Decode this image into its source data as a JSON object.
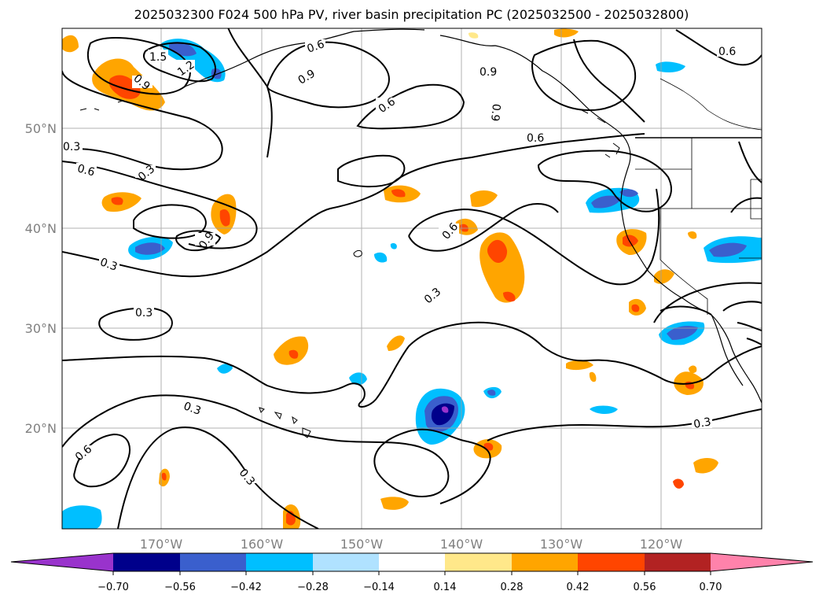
{
  "title": "2025032300 F024 500 hPa PV, river basin precipitation PC (2025032500 - 2025032800)",
  "map": {
    "lat_labels": [
      "50°N",
      "40°N",
      "30°N",
      "20°N"
    ],
    "lon_labels": [
      "170°W",
      "160°W",
      "150°W",
      "140°W",
      "130°W",
      "120°W"
    ],
    "contour_labels": [
      "1.5",
      "1.2",
      "0.9",
      "0.6",
      "0.3",
      "0.9",
      "0.6",
      "0.9",
      "0.6",
      "0.3",
      "0.9",
      "0.6",
      "0.3",
      "0.3",
      "0.3",
      "0.6",
      "0.3",
      "0.3",
      "0.3",
      "0.6",
      "0.9",
      "0.6"
    ],
    "contour_line_color": "#000000",
    "coast_color": "#000000",
    "grid_color": "#a0a0a0"
  },
  "colorbar": {
    "ticks": [
      "−0.70",
      "−0.56",
      "−0.42",
      "−0.28",
      "−0.14",
      "0.14",
      "0.28",
      "0.42",
      "0.56",
      "0.70"
    ],
    "colors": {
      "under": "#9933cc",
      "b1": "#00008b",
      "b2": "#3a5fcd",
      "b3": "#00bfff",
      "b4": "#b0e2ff",
      "mid": "#ffffff",
      "p1": "#ffe88a",
      "p2": "#ffa500",
      "p3": "#ff4500",
      "p4": "#b22222",
      "over": "#ff82ab"
    }
  }
}
